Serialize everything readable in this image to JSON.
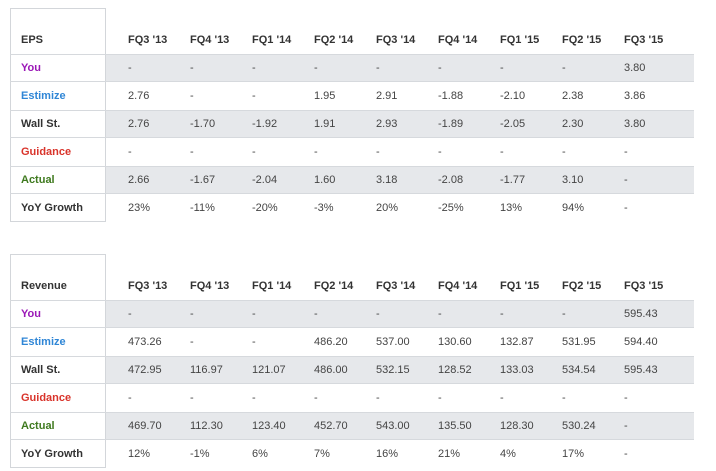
{
  "colors": {
    "you": "#9b18b7",
    "estimize": "#2f86d6",
    "guidance": "#d9342b",
    "actual": "#3f7a1f",
    "shaded_row": "#e6e8eb"
  },
  "eps": {
    "title": "EPS",
    "quarters": [
      "FQ3 '13",
      "FQ4 '13",
      "FQ1 '14",
      "FQ2 '14",
      "FQ3 '14",
      "FQ4 '14",
      "FQ1 '15",
      "FQ2 '15",
      "FQ3 '15"
    ],
    "rows": [
      {
        "label": "You",
        "values": [
          "-",
          "-",
          "-",
          "-",
          "-",
          "-",
          "-",
          "-",
          "3.80"
        ]
      },
      {
        "label": "Estimize",
        "values": [
          "2.76",
          "-",
          "-",
          "1.95",
          "2.91",
          "-1.88",
          "-2.10",
          "2.38",
          "3.86"
        ]
      },
      {
        "label": "Wall St.",
        "values": [
          "2.76",
          "-1.70",
          "-1.92",
          "1.91",
          "2.93",
          "-1.89",
          "-2.05",
          "2.30",
          "3.80"
        ]
      },
      {
        "label": "Guidance",
        "values": [
          "-",
          "-",
          "-",
          "-",
          "-",
          "-",
          "-",
          "-",
          "-"
        ]
      },
      {
        "label": "Actual",
        "values": [
          "2.66",
          "-1.67",
          "-2.04",
          "1.60",
          "3.18",
          "-2.08",
          "-1.77",
          "3.10",
          "-"
        ]
      },
      {
        "label": "YoY Growth",
        "values": [
          "23%",
          "-11%",
          "-20%",
          "-3%",
          "20%",
          "-25%",
          "13%",
          "94%",
          "-"
        ]
      }
    ]
  },
  "revenue": {
    "title": "Revenue",
    "quarters": [
      "FQ3 '13",
      "FQ4 '13",
      "FQ1 '14",
      "FQ2 '14",
      "FQ3 '14",
      "FQ4 '14",
      "FQ1 '15",
      "FQ2 '15",
      "FQ3 '15"
    ],
    "rows": [
      {
        "label": "You",
        "values": [
          "-",
          "-",
          "-",
          "-",
          "-",
          "-",
          "-",
          "-",
          "595.43"
        ]
      },
      {
        "label": "Estimize",
        "values": [
          "473.26",
          "-",
          "-",
          "486.20",
          "537.00",
          "130.60",
          "132.87",
          "531.95",
          "594.40"
        ]
      },
      {
        "label": "Wall St.",
        "values": [
          "472.95",
          "116.97",
          "121.07",
          "486.00",
          "532.15",
          "128.52",
          "133.03",
          "534.54",
          "595.43"
        ]
      },
      {
        "label": "Guidance",
        "values": [
          "-",
          "-",
          "-",
          "-",
          "-",
          "-",
          "-",
          "-",
          "-"
        ]
      },
      {
        "label": "Actual",
        "values": [
          "469.70",
          "112.30",
          "123.40",
          "452.70",
          "543.00",
          "135.50",
          "128.30",
          "530.24",
          "-"
        ]
      },
      {
        "label": "YoY Growth",
        "values": [
          "12%",
          "-1%",
          "6%",
          "7%",
          "16%",
          "21%",
          "4%",
          "17%",
          "-"
        ]
      }
    ]
  }
}
